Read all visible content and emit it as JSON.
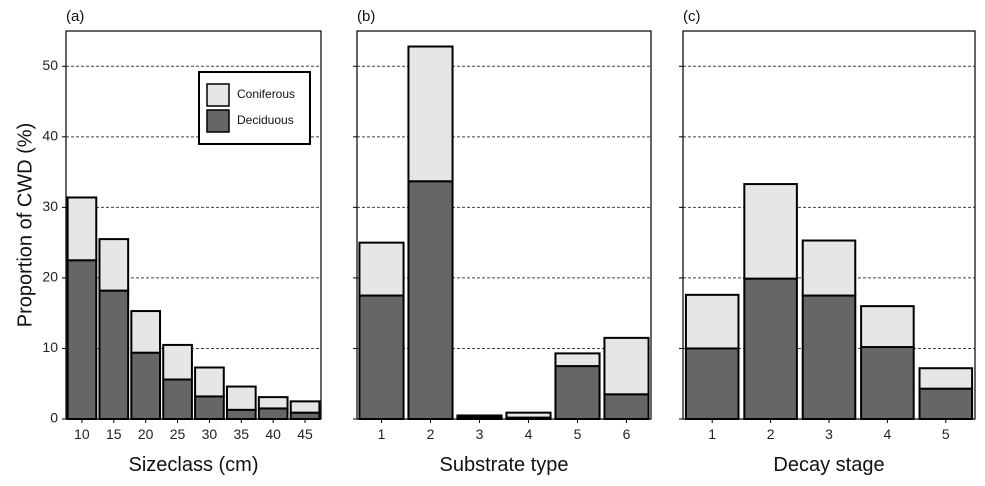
{
  "figure": {
    "ylabel": "Proportion of CWD (%)",
    "colors": {
      "coniferous": "#e6e6e6",
      "deciduous": "#666666",
      "outline": "#000000",
      "grid": "#444444"
    }
  },
  "chart_data": [
    {
      "type": "bar",
      "stacked": true,
      "panel_label": "(a)",
      "xlabel": "Sizeclass (cm)",
      "ylabel": "Proportion of CWD (%)",
      "ylim": [
        0,
        55
      ],
      "yticks": [
        0,
        10,
        20,
        30,
        40,
        50
      ],
      "categories": [
        "10",
        "15",
        "20",
        "25",
        "30",
        "35",
        "40",
        "45"
      ],
      "series": [
        {
          "name": "Deciduous",
          "values": [
            22.5,
            18.2,
            9.4,
            5.6,
            3.2,
            1.3,
            1.5,
            0.9
          ]
        },
        {
          "name": "Coniferous",
          "values": [
            8.9,
            7.3,
            5.9,
            4.9,
            4.1,
            3.3,
            1.6,
            1.6
          ]
        }
      ],
      "legend": {
        "position": "top-right",
        "entries": [
          "Coniferous",
          "Deciduous"
        ]
      },
      "grid": "horizontal dashed"
    },
    {
      "type": "bar",
      "stacked": true,
      "panel_label": "(b)",
      "xlabel": "Substrate type",
      "ylim": [
        0,
        55
      ],
      "yticks": [
        0,
        10,
        20,
        30,
        40,
        50
      ],
      "categories": [
        "1",
        "2",
        "3",
        "4",
        "5",
        "6"
      ],
      "series": [
        {
          "name": "Deciduous",
          "values": [
            17.5,
            33.7,
            0.3,
            0.2,
            7.5,
            3.5
          ]
        },
        {
          "name": "Coniferous",
          "values": [
            7.5,
            19.1,
            0.2,
            0.7,
            1.8,
            8.0
          ]
        }
      ],
      "grid": "horizontal dashed"
    },
    {
      "type": "bar",
      "stacked": true,
      "panel_label": "(c)",
      "xlabel": "Decay stage",
      "ylim": [
        0,
        55
      ],
      "yticks": [
        0,
        10,
        20,
        30,
        40,
        50
      ],
      "categories": [
        "1",
        "2",
        "3",
        "4",
        "5"
      ],
      "series": [
        {
          "name": "Deciduous",
          "values": [
            10.0,
            19.9,
            17.5,
            10.2,
            4.3
          ]
        },
        {
          "name": "Coniferous",
          "values": [
            7.6,
            13.4,
            7.8,
            5.8,
            2.9
          ]
        }
      ],
      "grid": "horizontal dashed"
    }
  ]
}
